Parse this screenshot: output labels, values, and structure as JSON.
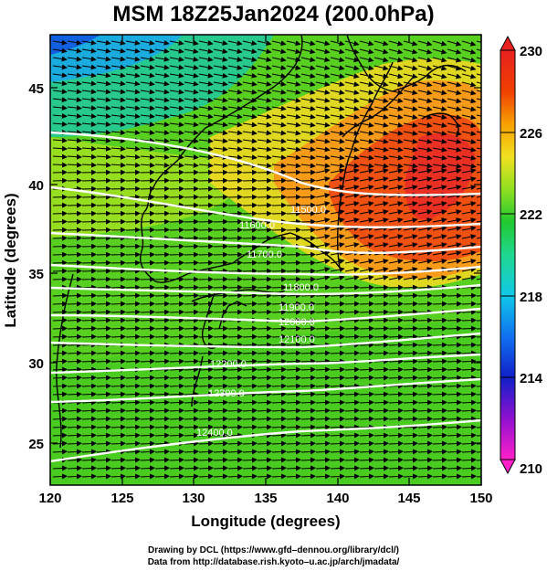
{
  "title": "MSM 18Z25Jan2024 (200.0hPa)",
  "map": {
    "x_axis": {
      "label": "Longitude (degrees)",
      "range": [
        120,
        150
      ],
      "ticks": [
        "120",
        "125",
        "130",
        "135",
        "140",
        "145",
        "150"
      ]
    },
    "y_axis": {
      "label": "Latitude  (degrees)",
      "range": [
        22.4,
        47.6
      ],
      "ticks": [
        "25",
        "30",
        "35",
        "40",
        "45"
      ]
    },
    "field": "temperature (shaded)",
    "contours": {
      "color": "#ffffff",
      "labels": [
        "11500.0",
        "11600.0",
        "11700.0",
        "11800.0",
        "11900.0",
        "12000.0",
        "12100.0",
        "12200.0",
        "12300.0",
        "12400.0"
      ]
    },
    "wind_vectors": "eastward flow"
  },
  "colorbar": {
    "min": 210,
    "max": 230,
    "tick_labels": [
      "230",
      "226",
      "222",
      "218",
      "214",
      "210"
    ],
    "colors": [
      "#ff20c8",
      "#9010d0",
      "#1020c8",
      "#1070f0",
      "#10c8e8",
      "#20d890",
      "#20c830",
      "#90e020",
      "#f0e020",
      "#f8a000",
      "#f04000",
      "#e82020"
    ]
  },
  "credit": {
    "line1": "Drawing by DCL (https://www.gfd–dennou.org/library/dcl/)",
    "line2": "Data from http://database.rish.kyoto–u.ac.jp/arch/jmadata/"
  }
}
